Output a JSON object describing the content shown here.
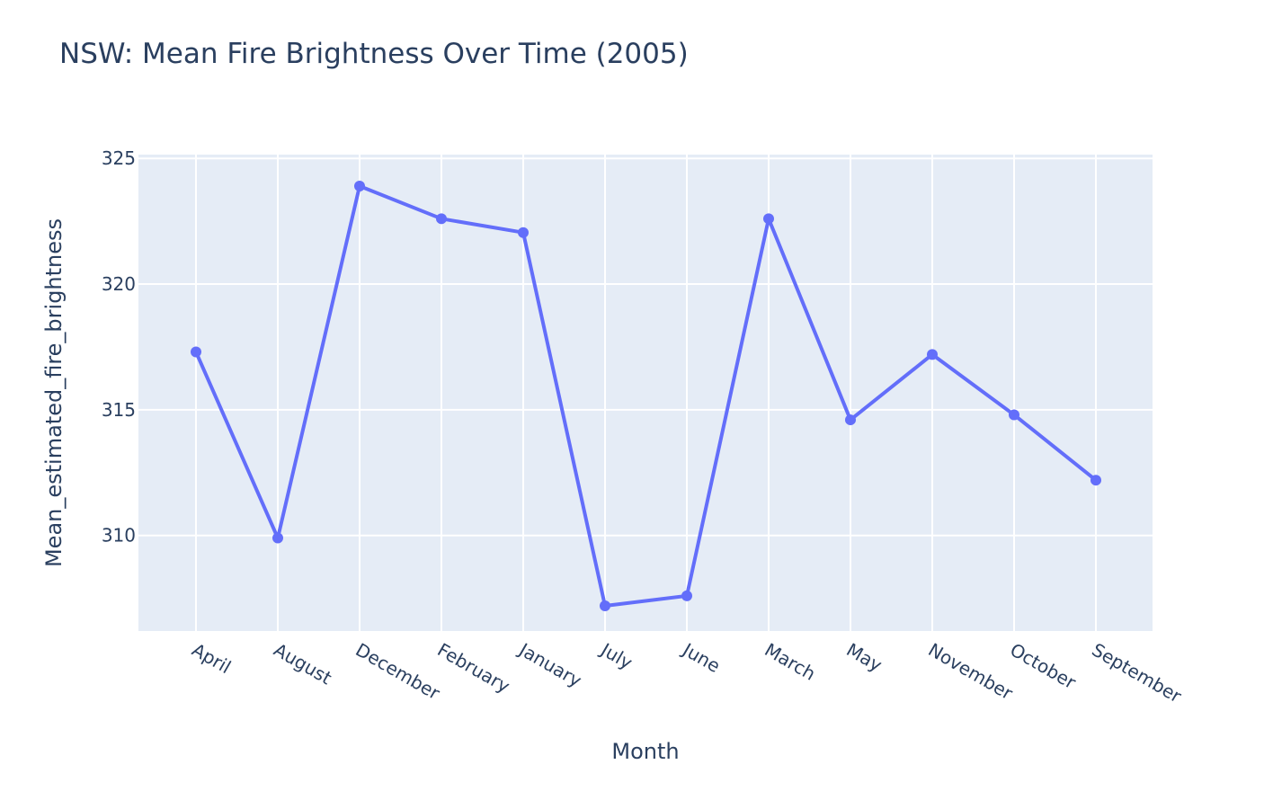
{
  "chart_data": {
    "type": "line",
    "title": "NSW: Mean Fire Brightness Over Time (2005)",
    "xlabel": "Month",
    "ylabel": "Mean_estimated_fire_brightness",
    "categories": [
      "April",
      "August",
      "December",
      "February",
      "January",
      "July",
      "June",
      "March",
      "May",
      "November",
      "October",
      "September"
    ],
    "series": [
      {
        "values": [
          317.3,
          309.9,
          323.9,
          322.6,
          322.05,
          307.2,
          307.6,
          322.6,
          314.6,
          317.2,
          314.8,
          312.2
        ]
      }
    ],
    "yticks": [
      310,
      315,
      320,
      325
    ],
    "ylim": [
      306.2,
      325.15
    ],
    "grid": true,
    "colors": {
      "plot_background": "#e5ecf6",
      "grid": "#ffffff",
      "line": "#636efa",
      "text": "#2a3f5f"
    }
  }
}
